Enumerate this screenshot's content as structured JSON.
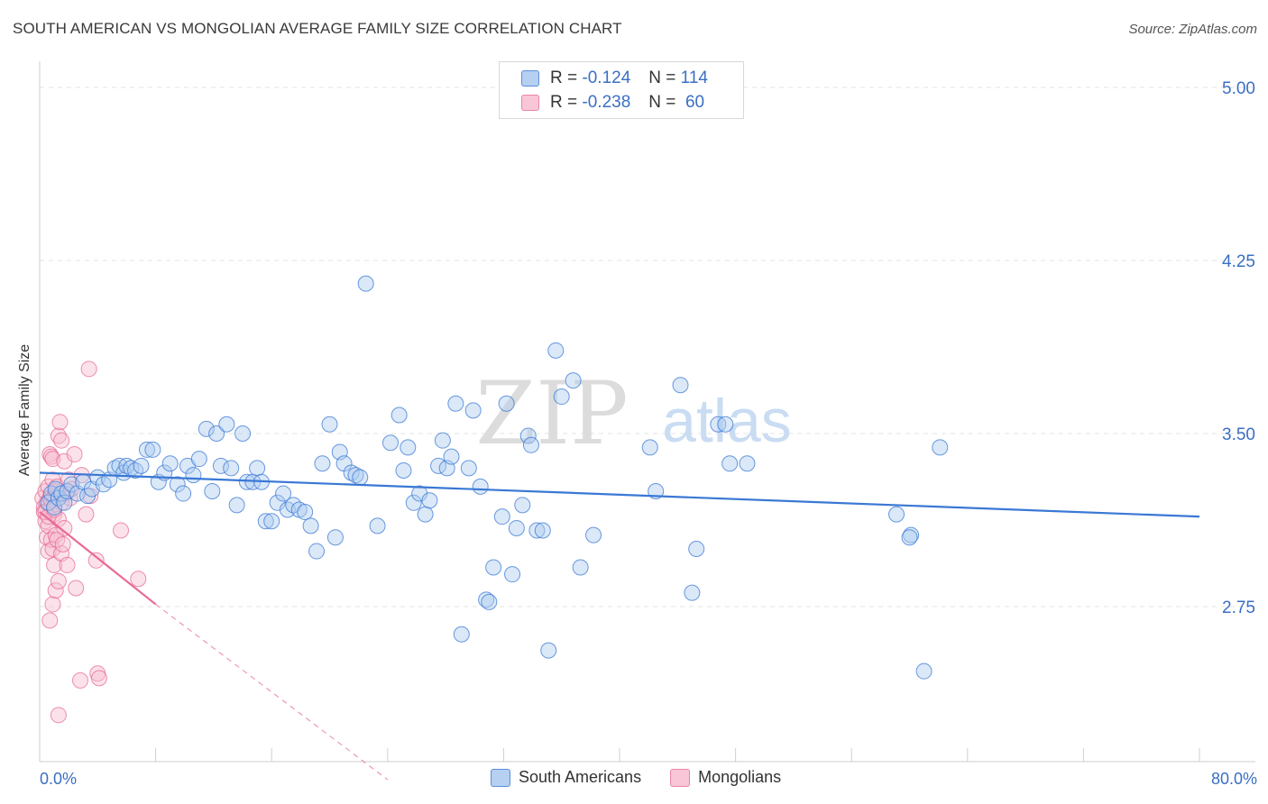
{
  "title": "SOUTH AMERICAN VS MONGOLIAN AVERAGE FAMILY SIZE CORRELATION CHART",
  "source": "Source: ZipAtlas.com",
  "watermark": {
    "zip": "ZIP",
    "atlas": "atlas"
  },
  "legend": {
    "rows": [
      {
        "r_label": "R =",
        "r_value": "-0.124",
        "n_label": "N =",
        "n_value": "114"
      },
      {
        "r_label": "R =",
        "r_value": "-0.238",
        "n_label": "N =",
        "n_value": "60"
      }
    ]
  },
  "colors": {
    "blue": "#3a78d4",
    "blue_fill": "#aecbf0",
    "pink": "#e86a94",
    "pink_fill": "#f6bed0",
    "grid": "#e3e3e3",
    "tick_label": "#3a6fc4"
  },
  "chart_data": {
    "type": "scatter",
    "title": "SOUTH AMERICAN VS MONGOLIAN AVERAGE FAMILY SIZE CORRELATION CHART",
    "xlabel": "",
    "ylabel": "Average Family Size",
    "xlim": [
      0,
      80
    ],
    "ylim": [
      2.0,
      5.05
    ],
    "x_tick_labels": [
      "0.0%",
      "80.0%"
    ],
    "y_ticks": [
      2.75,
      3.5,
      4.25,
      5.0
    ],
    "y_tick_labels": [
      "2.75",
      "3.50",
      "4.25",
      "5.00"
    ],
    "grid": true,
    "legend_position": "bottom-center",
    "series": [
      {
        "name": "South Americans",
        "r": -0.124,
        "n": 114,
        "trend": {
          "x": [
            0,
            80
          ],
          "y": [
            3.33,
            3.14
          ]
        },
        "points": [
          [
            0.6,
            3.2
          ],
          [
            0.8,
            3.24
          ],
          [
            1.0,
            3.18
          ],
          [
            1.1,
            3.26
          ],
          [
            1.3,
            3.22
          ],
          [
            1.5,
            3.24
          ],
          [
            1.7,
            3.2
          ],
          [
            1.9,
            3.25
          ],
          [
            2.2,
            3.28
          ],
          [
            2.6,
            3.24
          ],
          [
            3.0,
            3.29
          ],
          [
            3.3,
            3.23
          ],
          [
            3.6,
            3.26
          ],
          [
            4.0,
            3.31
          ],
          [
            4.4,
            3.28
          ],
          [
            4.8,
            3.3
          ],
          [
            5.2,
            3.35
          ],
          [
            5.5,
            3.36
          ],
          [
            5.8,
            3.33
          ],
          [
            6.0,
            3.36
          ],
          [
            6.3,
            3.35
          ],
          [
            6.6,
            3.34
          ],
          [
            7.0,
            3.36
          ],
          [
            7.4,
            3.43
          ],
          [
            7.8,
            3.43
          ],
          [
            8.2,
            3.29
          ],
          [
            8.6,
            3.33
          ],
          [
            9.0,
            3.37
          ],
          [
            9.5,
            3.28
          ],
          [
            9.9,
            3.24
          ],
          [
            10.2,
            3.36
          ],
          [
            10.6,
            3.32
          ],
          [
            11.0,
            3.39
          ],
          [
            11.5,
            3.52
          ],
          [
            11.9,
            3.25
          ],
          [
            12.2,
            3.5
          ],
          [
            12.5,
            3.36
          ],
          [
            12.9,
            3.54
          ],
          [
            13.2,
            3.35
          ],
          [
            13.6,
            3.19
          ],
          [
            14.0,
            3.5
          ],
          [
            14.3,
            3.29
          ],
          [
            14.7,
            3.29
          ],
          [
            15.0,
            3.35
          ],
          [
            15.3,
            3.29
          ],
          [
            15.6,
            3.12
          ],
          [
            16.0,
            3.12
          ],
          [
            16.4,
            3.2
          ],
          [
            16.8,
            3.24
          ],
          [
            17.1,
            3.17
          ],
          [
            17.5,
            3.19
          ],
          [
            17.9,
            3.17
          ],
          [
            18.3,
            3.16
          ],
          [
            18.7,
            3.1
          ],
          [
            19.1,
            2.99
          ],
          [
            19.5,
            3.37
          ],
          [
            20.0,
            3.54
          ],
          [
            20.4,
            3.05
          ],
          [
            20.7,
            3.42
          ],
          [
            21.0,
            3.37
          ],
          [
            21.5,
            3.33
          ],
          [
            21.8,
            3.32
          ],
          [
            22.1,
            3.31
          ],
          [
            22.5,
            4.15
          ],
          [
            23.3,
            3.1
          ],
          [
            24.2,
            3.46
          ],
          [
            24.8,
            3.58
          ],
          [
            25.1,
            3.34
          ],
          [
            25.4,
            3.44
          ],
          [
            25.8,
            3.2
          ],
          [
            26.2,
            3.24
          ],
          [
            26.6,
            3.15
          ],
          [
            26.9,
            3.21
          ],
          [
            27.5,
            3.36
          ],
          [
            27.8,
            3.47
          ],
          [
            28.1,
            3.35
          ],
          [
            28.4,
            3.4
          ],
          [
            28.7,
            3.63
          ],
          [
            29.1,
            2.63
          ],
          [
            29.6,
            3.35
          ],
          [
            29.9,
            3.6
          ],
          [
            30.4,
            3.27
          ],
          [
            30.8,
            2.78
          ],
          [
            31.0,
            2.77
          ],
          [
            31.3,
            2.92
          ],
          [
            31.9,
            3.14
          ],
          [
            32.2,
            3.63
          ],
          [
            32.6,
            2.89
          ],
          [
            32.9,
            3.09
          ],
          [
            33.3,
            3.19
          ],
          [
            33.7,
            3.49
          ],
          [
            33.9,
            3.45
          ],
          [
            34.3,
            3.08
          ],
          [
            34.7,
            3.08
          ],
          [
            35.1,
            2.56
          ],
          [
            35.6,
            3.86
          ],
          [
            36.0,
            3.66
          ],
          [
            36.8,
            3.73
          ],
          [
            37.3,
            2.92
          ],
          [
            38.2,
            3.06
          ],
          [
            42.1,
            3.44
          ],
          [
            42.5,
            3.25
          ],
          [
            44.2,
            3.71
          ],
          [
            45.0,
            2.81
          ],
          [
            45.3,
            3.0
          ],
          [
            46.8,
            3.54
          ],
          [
            47.3,
            3.54
          ],
          [
            47.6,
            3.37
          ],
          [
            48.8,
            3.37
          ],
          [
            59.1,
            3.15
          ],
          [
            60.1,
            3.06
          ],
          [
            61.0,
            2.47
          ],
          [
            62.1,
            3.44
          ],
          [
            60.0,
            3.05
          ]
        ]
      },
      {
        "name": "Mongolians",
        "r": -0.238,
        "n": 60,
        "trend": {
          "x": [
            0,
            8
          ],
          "y": [
            3.16,
            2.76
          ]
        },
        "trend_dashed": {
          "x": [
            8,
            24
          ],
          "y": [
            2.76,
            2.0
          ]
        },
        "points": [
          [
            0.2,
            3.22
          ],
          [
            0.3,
            3.18
          ],
          [
            0.3,
            3.16
          ],
          [
            0.4,
            3.25
          ],
          [
            0.4,
            3.12
          ],
          [
            0.5,
            3.2
          ],
          [
            0.5,
            3.05
          ],
          [
            0.6,
            3.27
          ],
          [
            0.6,
            3.1
          ],
          [
            0.6,
            2.99
          ],
          [
            0.7,
            3.41
          ],
          [
            0.7,
            3.22
          ],
          [
            0.7,
            2.69
          ],
          [
            0.8,
            3.4
          ],
          [
            0.8,
            3.18
          ],
          [
            0.8,
            3.04
          ],
          [
            0.9,
            3.39
          ],
          [
            0.9,
            3.3
          ],
          [
            0.9,
            3.0
          ],
          [
            0.9,
            2.76
          ],
          [
            1.0,
            3.23
          ],
          [
            1.0,
            3.15
          ],
          [
            1.0,
            2.93
          ],
          [
            1.1,
            3.25
          ],
          [
            1.1,
            3.06
          ],
          [
            1.1,
            2.82
          ],
          [
            1.2,
            3.27
          ],
          [
            1.2,
            3.04
          ],
          [
            1.3,
            3.49
          ],
          [
            1.3,
            3.13
          ],
          [
            1.3,
            2.86
          ],
          [
            1.3,
            2.28
          ],
          [
            1.4,
            3.55
          ],
          [
            1.5,
            3.47
          ],
          [
            1.5,
            3.2
          ],
          [
            1.5,
            2.98
          ],
          [
            1.6,
            3.02
          ],
          [
            1.7,
            3.38
          ],
          [
            1.7,
            3.09
          ],
          [
            1.8,
            3.24
          ],
          [
            1.9,
            2.93
          ],
          [
            2.0,
            3.3
          ],
          [
            2.1,
            3.22
          ],
          [
            2.2,
            3.26
          ],
          [
            2.4,
            3.41
          ],
          [
            2.5,
            2.83
          ],
          [
            2.8,
            2.43
          ],
          [
            2.9,
            3.32
          ],
          [
            3.2,
            3.15
          ],
          [
            3.4,
            3.78
          ],
          [
            3.5,
            3.23
          ],
          [
            3.9,
            2.95
          ],
          [
            4.0,
            2.46
          ],
          [
            4.1,
            2.44
          ],
          [
            5.6,
            3.08
          ],
          [
            6.8,
            2.87
          ],
          [
            0.4,
            3.16
          ],
          [
            0.6,
            3.14
          ],
          [
            0.8,
            3.21
          ],
          [
            1.0,
            3.17
          ]
        ]
      }
    ]
  },
  "bottom_legend": {
    "items": [
      {
        "label": "South Americans"
      },
      {
        "label": "Mongolians"
      }
    ]
  }
}
